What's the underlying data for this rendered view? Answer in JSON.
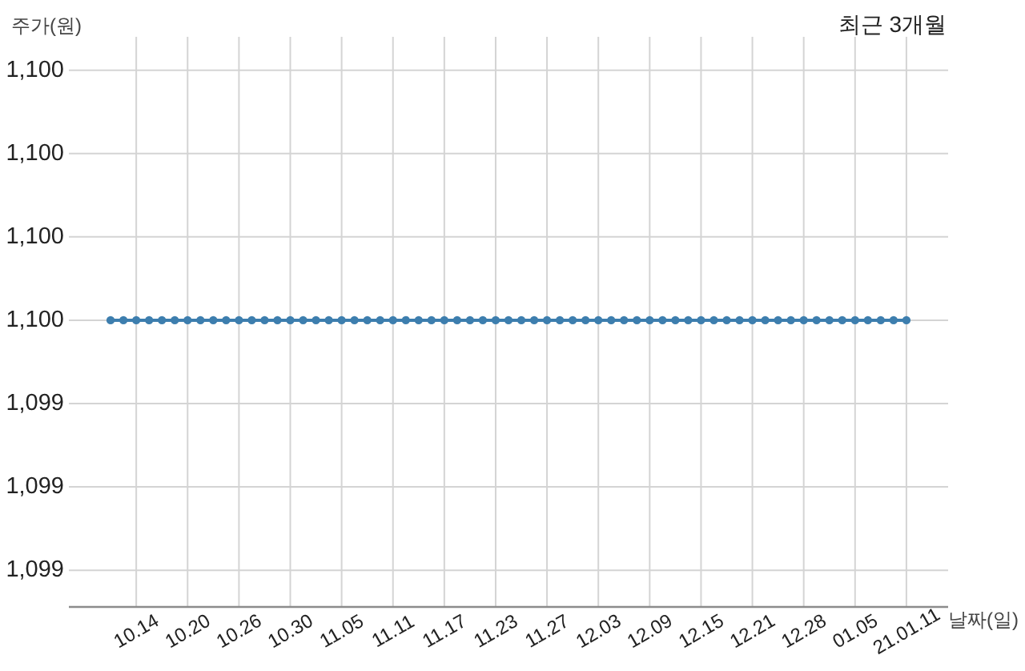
{
  "chart_data": {
    "type": "line",
    "title": "최근 3개월",
    "ylabel": "주가(원)",
    "xlabel": "날짜(일)",
    "categories": [
      null,
      null,
      "10.14",
      null,
      null,
      null,
      "10.20",
      null,
      null,
      null,
      "10.26",
      null,
      null,
      null,
      "10.30",
      null,
      null,
      null,
      "11.05",
      null,
      null,
      null,
      "11.11",
      null,
      null,
      null,
      "11.17",
      null,
      null,
      null,
      "11.23",
      null,
      null,
      null,
      "11.27",
      null,
      null,
      null,
      "12.03",
      null,
      null,
      null,
      "12.09",
      null,
      null,
      null,
      "12.15",
      null,
      null,
      null,
      "12.21",
      null,
      null,
      null,
      "12.28",
      null,
      null,
      null,
      "01.05",
      null,
      null,
      null,
      "21.01.11"
    ],
    "series": [
      {
        "color": "#3d7eae",
        "values": [
          1099.6,
          1099.6,
          1099.6,
          1099.6,
          1099.6,
          1099.6,
          1099.6,
          1099.6,
          1099.6,
          1099.6,
          1099.6,
          1099.6,
          1099.6,
          1099.6,
          1099.6,
          1099.6,
          1099.6,
          1099.6,
          1099.6,
          1099.6,
          1099.6,
          1099.6,
          1099.6,
          1099.6,
          1099.6,
          1099.6,
          1099.6,
          1099.6,
          1099.6,
          1099.6,
          1099.6,
          1099.6,
          1099.6,
          1099.6,
          1099.6,
          1099.6,
          1099.6,
          1099.6,
          1099.6,
          1099.6,
          1099.6,
          1099.6,
          1099.6,
          1099.6,
          1099.6,
          1099.6,
          1099.6,
          1099.6,
          1099.6,
          1099.6,
          1099.6,
          1099.6,
          1099.6,
          1099.6,
          1099.6,
          1099.6,
          1099.6,
          1099.6,
          1099.6,
          1099.6,
          1099.6,
          1099.6,
          1099.6
        ]
      }
    ],
    "ylim": [
      1098.74,
      1100.45
    ],
    "yticks": [
      {
        "value": 1098.85,
        "label": "1,099"
      },
      {
        "value": 1099.1,
        "label": "1,099"
      },
      {
        "value": 1099.35,
        "label": "1,099"
      },
      {
        "value": 1099.6,
        "label": "1,100"
      },
      {
        "value": 1099.85,
        "label": "1,100"
      },
      {
        "value": 1100.1,
        "label": "1,100"
      },
      {
        "value": 1100.35,
        "label": "1,100"
      }
    ],
    "grid": true,
    "marker": "circle",
    "line_style": "solid"
  }
}
